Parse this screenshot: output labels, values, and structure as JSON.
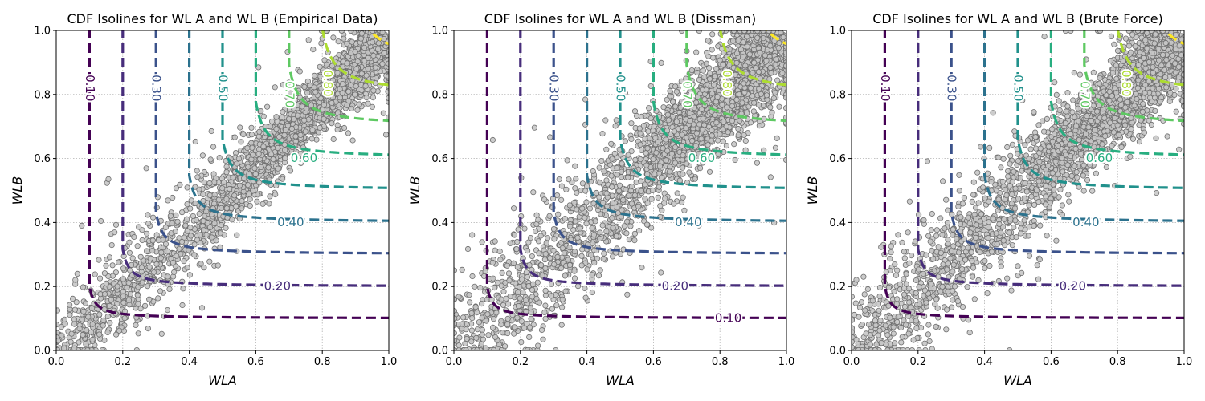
{
  "chart_data": [
    {
      "type": "scatter",
      "title": "CDF Isolines for WL A and WL B (Empirical Data)",
      "xlabel": "WLA",
      "ylabel": "WLB",
      "xlim": [
        0,
        1
      ],
      "ylim": [
        0,
        1
      ],
      "xticks": [
        "0.0",
        "0.2",
        "0.4",
        "0.6",
        "0.8",
        "1.0"
      ],
      "yticks": [
        "0.0",
        "0.2",
        "0.4",
        "0.6",
        "0.8",
        "1.0"
      ],
      "grid": true,
      "scatter": {
        "n_points": 2600,
        "band": [
          0.05,
          0.07
        ],
        "description_color": "#bfbfbf"
      },
      "isolines": [
        {
          "level": 0.1,
          "label": "0.10",
          "color": "#440154",
          "x_asym": 0.1,
          "y_asym": 0.1,
          "label_pos": [
            0.1,
            0.82
          ],
          "label_vertical": true
        },
        {
          "level": 0.2,
          "label": "0.20",
          "color": "#472d7b",
          "x_asym": 0.2,
          "y_asym": 0.2,
          "label_pos": [
            0.665,
            0.2
          ],
          "label_vertical": false
        },
        {
          "level": 0.3,
          "label": "0.30",
          "color": "#3b528b",
          "x_asym": 0.3,
          "y_asym": 0.3,
          "label_pos": [
            0.3,
            0.82
          ],
          "label_vertical": true
        },
        {
          "level": 0.4,
          "label": "0.40",
          "color": "#2c728e",
          "x_asym": 0.4,
          "y_asym": 0.4,
          "label_pos": [
            0.705,
            0.4
          ],
          "label_vertical": false
        },
        {
          "level": 0.5,
          "label": "0.50",
          "color": "#21918c",
          "x_asym": 0.5,
          "y_asym": 0.5,
          "label_pos": [
            0.5,
            0.82
          ],
          "label_vertical": true
        },
        {
          "level": 0.6,
          "label": "0.60",
          "color": "#28ae80",
          "x_asym": 0.6,
          "y_asym": 0.6,
          "label_pos": [
            0.745,
            0.6
          ],
          "label_vertical": false
        },
        {
          "level": 0.7,
          "label": "0.70",
          "color": "#5ec962",
          "x_asym": 0.7,
          "y_asym": 0.7,
          "label_pos": [
            0.7,
            0.8
          ],
          "label_vertical": true
        },
        {
          "level": 0.8,
          "label": "0.80",
          "color": "#addc30",
          "x_asym": 0.8,
          "y_asym": 0.8,
          "label_pos": [
            0.815,
            0.835
          ],
          "label_vertical": true
        },
        {
          "level": 0.9,
          "label": "",
          "color": "#fde725",
          "x_asym": 0.9,
          "y_asym": 0.9,
          "label_pos": null,
          "label_vertical": false
        }
      ]
    },
    {
      "type": "scatter",
      "title": "CDF Isolines for WL A and WL B (Dissman)",
      "xlabel": "WLA",
      "ylabel": "WLB",
      "xlim": [
        0,
        1
      ],
      "ylim": [
        0,
        1
      ],
      "xticks": [
        "0.0",
        "0.2",
        "0.4",
        "0.6",
        "0.8",
        "1.0"
      ],
      "yticks": [
        "0.0",
        "0.2",
        "0.4",
        "0.6",
        "0.8",
        "1.0"
      ],
      "grid": true,
      "scatter": {
        "n_points": 2800,
        "band": [
          0.08,
          0.1
        ],
        "description_color": "#bfbfbf"
      },
      "isolines": [
        {
          "level": 0.1,
          "label": "0.10",
          "color": "#440154",
          "x_asym": 0.1,
          "y_asym": 0.1,
          "label_pos": [
            0.825,
            0.1
          ],
          "label_vertical": false
        },
        {
          "level": 0.2,
          "label": "0.20",
          "color": "#472d7b",
          "x_asym": 0.2,
          "y_asym": 0.2,
          "label_pos": [
            0.665,
            0.2
          ],
          "label_vertical": false
        },
        {
          "level": 0.3,
          "label": "0.30",
          "color": "#3b528b",
          "x_asym": 0.3,
          "y_asym": 0.3,
          "label_pos": [
            0.3,
            0.82
          ],
          "label_vertical": true
        },
        {
          "level": 0.4,
          "label": "0.40",
          "color": "#2c728e",
          "x_asym": 0.4,
          "y_asym": 0.4,
          "label_pos": [
            0.705,
            0.4
          ],
          "label_vertical": false
        },
        {
          "level": 0.5,
          "label": "0.50",
          "color": "#21918c",
          "x_asym": 0.5,
          "y_asym": 0.5,
          "label_pos": [
            0.5,
            0.82
          ],
          "label_vertical": true
        },
        {
          "level": 0.6,
          "label": "0.60",
          "color": "#28ae80",
          "x_asym": 0.6,
          "y_asym": 0.6,
          "label_pos": [
            0.745,
            0.6
          ],
          "label_vertical": false
        },
        {
          "level": 0.7,
          "label": "0.70",
          "color": "#5ec962",
          "x_asym": 0.7,
          "y_asym": 0.7,
          "label_pos": [
            0.7,
            0.8
          ],
          "label_vertical": true
        },
        {
          "level": 0.8,
          "label": "0.80",
          "color": "#addc30",
          "x_asym": 0.8,
          "y_asym": 0.8,
          "label_pos": [
            0.82,
            0.835
          ],
          "label_vertical": true
        },
        {
          "level": 0.9,
          "label": "",
          "color": "#fde725",
          "x_asym": 0.9,
          "y_asym": 0.9,
          "label_pos": null,
          "label_vertical": false
        }
      ]
    },
    {
      "type": "scatter",
      "title": "CDF Isolines for WL A and WL B (Brute Force)",
      "xlabel": "WLA",
      "ylabel": "WLB",
      "xlim": [
        0,
        1
      ],
      "ylim": [
        0,
        1
      ],
      "xticks": [
        "0.0",
        "0.2",
        "0.4",
        "0.6",
        "0.8",
        "1.0"
      ],
      "yticks": [
        "0.0",
        "0.2",
        "0.4",
        "0.6",
        "0.8",
        "1.0"
      ],
      "grid": true,
      "scatter": {
        "n_points": 2800,
        "band": [
          0.07,
          0.09
        ],
        "description_color": "#bfbfbf"
      },
      "isolines": [
        {
          "level": 0.1,
          "label": "0.10",
          "color": "#440154",
          "x_asym": 0.1,
          "y_asym": 0.1,
          "label_pos": [
            0.1,
            0.82
          ],
          "label_vertical": true
        },
        {
          "level": 0.2,
          "label": "0.20",
          "color": "#472d7b",
          "x_asym": 0.2,
          "y_asym": 0.2,
          "label_pos": [
            0.665,
            0.2
          ],
          "label_vertical": false
        },
        {
          "level": 0.3,
          "label": "0.30",
          "color": "#3b528b",
          "x_asym": 0.3,
          "y_asym": 0.3,
          "label_pos": [
            0.3,
            0.82
          ],
          "label_vertical": true
        },
        {
          "level": 0.4,
          "label": "0.40",
          "color": "#2c728e",
          "x_asym": 0.4,
          "y_asym": 0.4,
          "label_pos": [
            0.705,
            0.4
          ],
          "label_vertical": false
        },
        {
          "level": 0.5,
          "label": "0.50",
          "color": "#21918c",
          "x_asym": 0.5,
          "y_asym": 0.5,
          "label_pos": [
            0.5,
            0.82
          ],
          "label_vertical": true
        },
        {
          "level": 0.6,
          "label": "0.60",
          "color": "#28ae80",
          "x_asym": 0.6,
          "y_asym": 0.6,
          "label_pos": [
            0.745,
            0.6
          ],
          "label_vertical": false
        },
        {
          "level": 0.7,
          "label": "0.70",
          "color": "#5ec962",
          "x_asym": 0.7,
          "y_asym": 0.7,
          "label_pos": [
            0.7,
            0.8
          ],
          "label_vertical": true
        },
        {
          "level": 0.8,
          "label": "0.80",
          "color": "#addc30",
          "x_asym": 0.8,
          "y_asym": 0.8,
          "label_pos": [
            0.825,
            0.835
          ],
          "label_vertical": true
        },
        {
          "level": 0.9,
          "label": "",
          "color": "#fde725",
          "x_asym": 0.9,
          "y_asym": 0.9,
          "label_pos": null,
          "label_vertical": false
        }
      ]
    }
  ]
}
